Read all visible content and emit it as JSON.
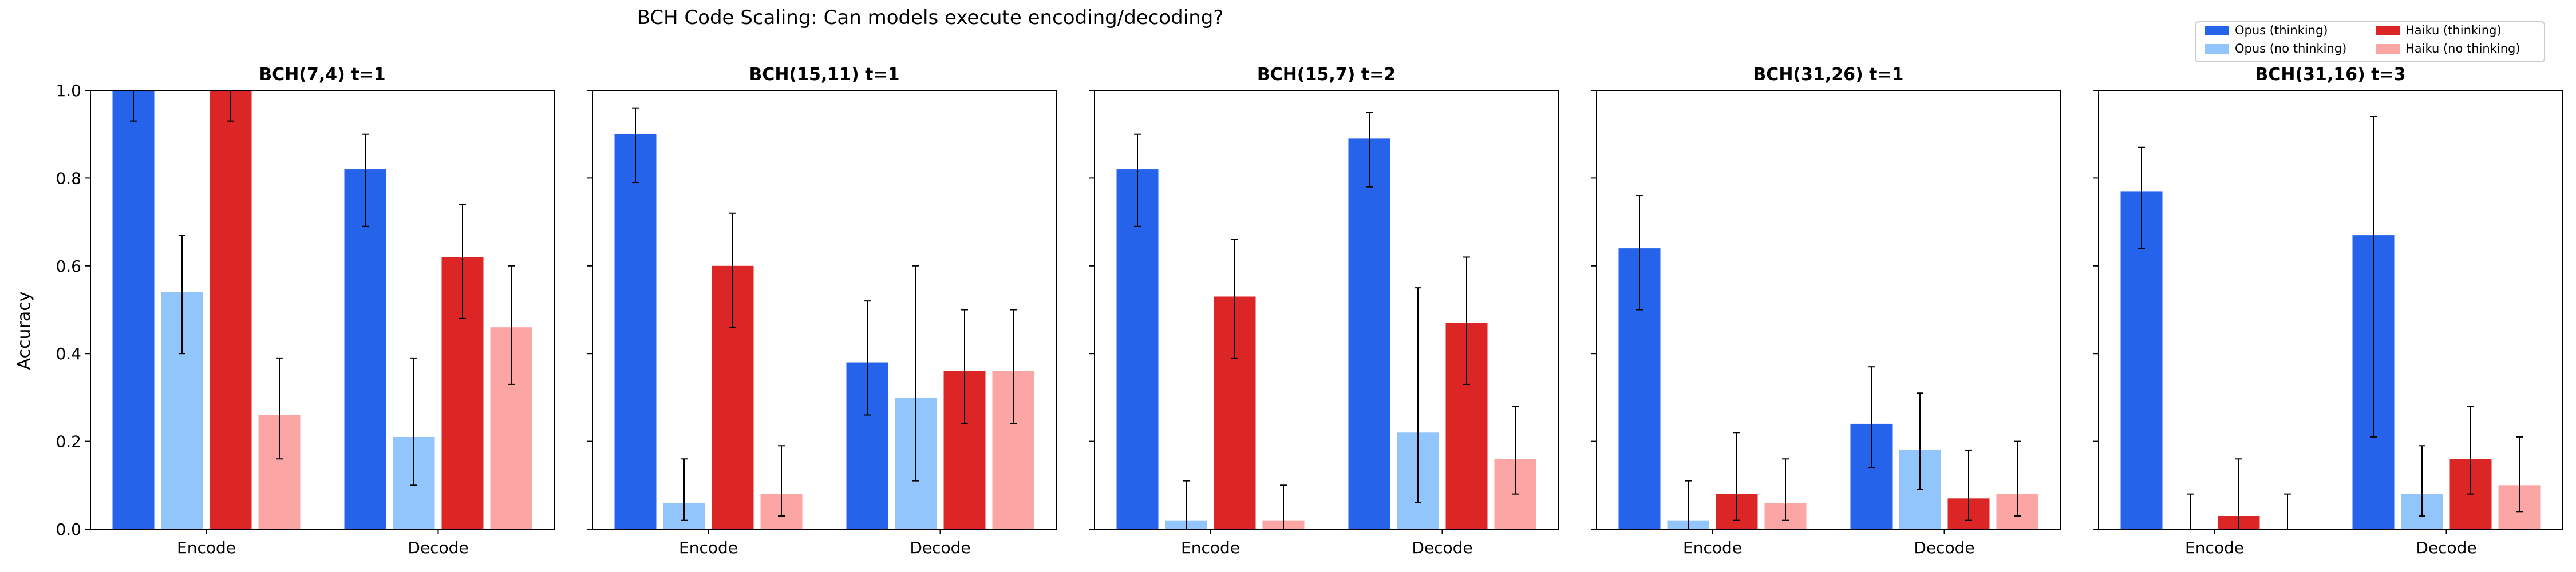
{
  "figure": {
    "title": "BCH Code Scaling: Can models execute encoding/decoding?",
    "ylabel": "Accuracy",
    "yticks": [
      "0.0",
      "0.2",
      "0.4",
      "0.6",
      "0.8",
      "1.0"
    ],
    "legend": {
      "placement": "top-right",
      "entries": [
        {
          "name": "Opus (thinking)",
          "color": "#2563eb"
        },
        {
          "name": "Opus (no thinking)",
          "color": "#93c5fd"
        },
        {
          "name": "Haiku (thinking)",
          "color": "#dc2626"
        },
        {
          "name": "Haiku (no thinking)",
          "color": "#fca5a5"
        }
      ]
    },
    "colors": {
      "opus_thinking": "#2563eb",
      "opus_no_thinking": "#93c5fd",
      "haiku_thinking": "#dc2626",
      "haiku_no_thinking": "#fca5a5"
    }
  },
  "chart_data": [
    {
      "type": "bar",
      "title": "BCH(7,4) t=1",
      "categories": [
        "Encode",
        "Decode"
      ],
      "ylim": [
        0,
        1
      ],
      "ylabel": "Accuracy",
      "series": [
        {
          "name": "Opus (thinking)",
          "values": [
            1.0,
            0.82
          ],
          "err_low": [
            0.93,
            0.69
          ],
          "err_high": [
            1.0,
            0.9
          ]
        },
        {
          "name": "Opus (no thinking)",
          "values": [
            0.54,
            0.21
          ],
          "err_low": [
            0.4,
            0.1
          ],
          "err_high": [
            0.67,
            0.39
          ]
        },
        {
          "name": "Haiku (thinking)",
          "values": [
            1.0,
            0.62
          ],
          "err_low": [
            0.93,
            0.48
          ],
          "err_high": [
            1.0,
            0.74
          ]
        },
        {
          "name": "Haiku (no thinking)",
          "values": [
            0.26,
            0.46
          ],
          "err_low": [
            0.16,
            0.33
          ],
          "err_high": [
            0.39,
            0.6
          ]
        }
      ]
    },
    {
      "type": "bar",
      "title": "BCH(15,11) t=1",
      "categories": [
        "Encode",
        "Decode"
      ],
      "ylim": [
        0,
        1
      ],
      "series": [
        {
          "name": "Opus (thinking)",
          "values": [
            0.9,
            0.38
          ],
          "err_low": [
            0.79,
            0.26
          ],
          "err_high": [
            0.96,
            0.52
          ]
        },
        {
          "name": "Opus (no thinking)",
          "values": [
            0.06,
            0.3
          ],
          "err_low": [
            0.02,
            0.11
          ],
          "err_high": [
            0.16,
            0.6
          ]
        },
        {
          "name": "Haiku (thinking)",
          "values": [
            0.6,
            0.36
          ],
          "err_low": [
            0.46,
            0.24
          ],
          "err_high": [
            0.72,
            0.5
          ]
        },
        {
          "name": "Haiku (no thinking)",
          "values": [
            0.08,
            0.36
          ],
          "err_low": [
            0.03,
            0.24
          ],
          "err_high": [
            0.19,
            0.5
          ]
        }
      ]
    },
    {
      "type": "bar",
      "title": "BCH(15,7) t=2",
      "categories": [
        "Encode",
        "Decode"
      ],
      "ylim": [
        0,
        1
      ],
      "series": [
        {
          "name": "Opus (thinking)",
          "values": [
            0.82,
            0.89
          ],
          "err_low": [
            0.69,
            0.78
          ],
          "err_high": [
            0.9,
            0.95
          ]
        },
        {
          "name": "Opus (no thinking)",
          "values": [
            0.02,
            0.22
          ],
          "err_low": [
            0.0,
            0.06
          ],
          "err_high": [
            0.11,
            0.55
          ]
        },
        {
          "name": "Haiku (thinking)",
          "values": [
            0.53,
            0.47
          ],
          "err_low": [
            0.39,
            0.33
          ],
          "err_high": [
            0.66,
            0.62
          ]
        },
        {
          "name": "Haiku (no thinking)",
          "values": [
            0.02,
            0.16
          ],
          "err_low": [
            0.0,
            0.08
          ],
          "err_high": [
            0.1,
            0.28
          ]
        }
      ]
    },
    {
      "type": "bar",
      "title": "BCH(31,26) t=1",
      "categories": [
        "Encode",
        "Decode"
      ],
      "ylim": [
        0,
        1
      ],
      "series": [
        {
          "name": "Opus (thinking)",
          "values": [
            0.64,
            0.24
          ],
          "err_low": [
            0.5,
            0.14
          ],
          "err_high": [
            0.76,
            0.37
          ]
        },
        {
          "name": "Opus (no thinking)",
          "values": [
            0.02,
            0.18
          ],
          "err_low": [
            0.0,
            0.09
          ],
          "err_high": [
            0.11,
            0.31
          ]
        },
        {
          "name": "Haiku (thinking)",
          "values": [
            0.08,
            0.07
          ],
          "err_low": [
            0.02,
            0.02
          ],
          "err_high": [
            0.22,
            0.18
          ]
        },
        {
          "name": "Haiku (no thinking)",
          "values": [
            0.06,
            0.08
          ],
          "err_low": [
            0.02,
            0.03
          ],
          "err_high": [
            0.16,
            0.2
          ]
        }
      ]
    },
    {
      "type": "bar",
      "title": "BCH(31,16) t=3",
      "categories": [
        "Encode",
        "Decode"
      ],
      "ylim": [
        0,
        1
      ],
      "series": [
        {
          "name": "Opus (thinking)",
          "values": [
            0.77,
            0.67
          ],
          "err_low": [
            0.64,
            0.21
          ],
          "err_high": [
            0.87,
            0.94
          ]
        },
        {
          "name": "Opus (no thinking)",
          "values": [
            0.0,
            0.08
          ],
          "err_low": [
            0.0,
            0.03
          ],
          "err_high": [
            0.08,
            0.19
          ]
        },
        {
          "name": "Haiku (thinking)",
          "values": [
            0.03,
            0.16
          ],
          "err_low": [
            0.0,
            0.08
          ],
          "err_high": [
            0.16,
            0.28
          ]
        },
        {
          "name": "Haiku (no thinking)",
          "values": [
            0.0,
            0.1
          ],
          "err_low": [
            0.0,
            0.04
          ],
          "err_high": [
            0.08,
            0.21
          ]
        }
      ]
    }
  ]
}
